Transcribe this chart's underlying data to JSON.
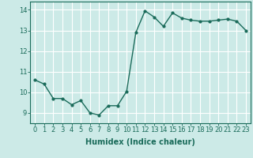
{
  "x": [
    0,
    1,
    2,
    3,
    4,
    5,
    6,
    7,
    8,
    9,
    10,
    11,
    12,
    13,
    14,
    15,
    16,
    17,
    18,
    19,
    20,
    21,
    22,
    23
  ],
  "y": [
    10.6,
    10.4,
    9.7,
    9.7,
    9.4,
    9.6,
    9.0,
    8.9,
    9.35,
    9.35,
    10.05,
    12.9,
    13.95,
    13.65,
    13.2,
    13.85,
    13.6,
    13.5,
    13.45,
    13.45,
    13.5,
    13.55,
    13.45,
    13.0
  ],
  "line_color": "#1a6b5a",
  "marker": "o",
  "markersize": 2.0,
  "linewidth": 1.0,
  "background_color": "#cceae7",
  "grid_color": "#ffffff",
  "xlabel": "Humidex (Indice chaleur)",
  "xlabel_fontsize": 7,
  "tick_fontsize": 6,
  "ylim": [
    8.5,
    14.4
  ],
  "xlim": [
    -0.5,
    23.5
  ],
  "yticks": [
    9,
    10,
    11,
    12,
    13,
    14
  ],
  "xticks": [
    0,
    1,
    2,
    3,
    4,
    5,
    6,
    7,
    8,
    9,
    10,
    11,
    12,
    13,
    14,
    15,
    16,
    17,
    18,
    19,
    20,
    21,
    22,
    23
  ]
}
